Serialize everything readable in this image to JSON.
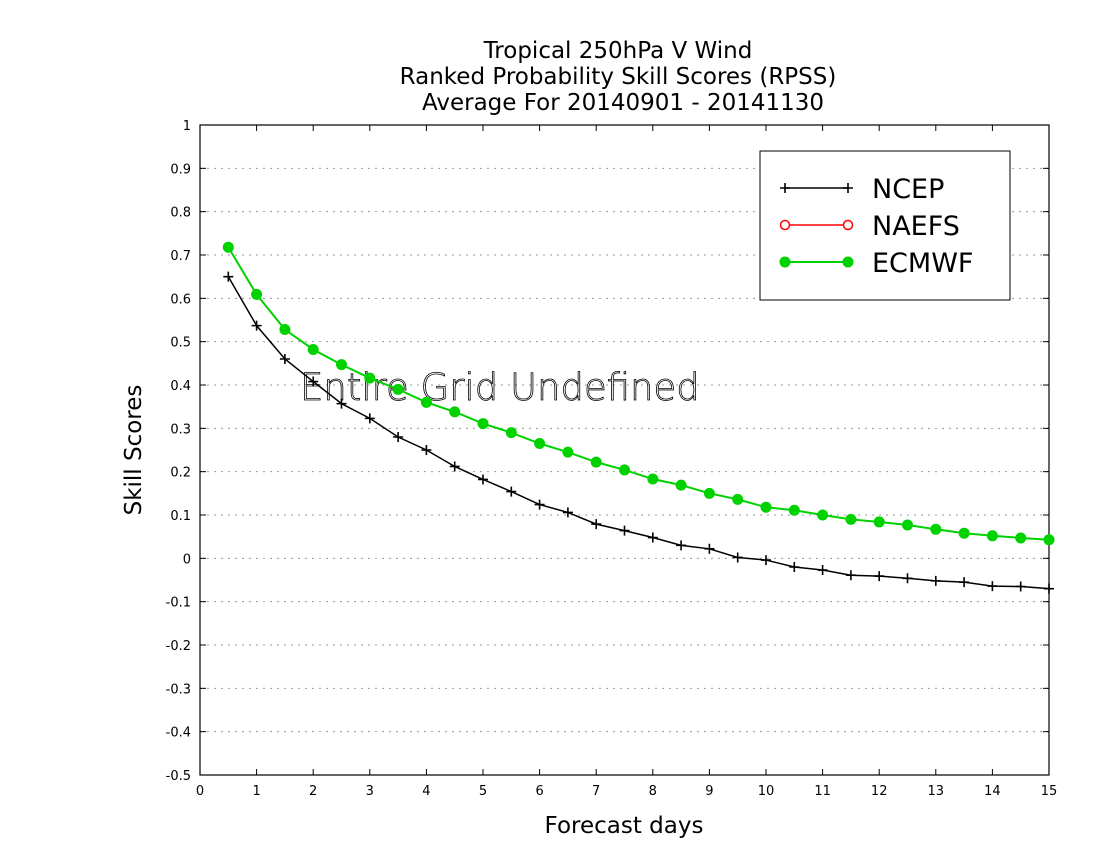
{
  "chart_data": {
    "type": "line",
    "title": "Tropical 250hPa V Wind",
    "subtitle": "Ranked Probability Skill Scores (RPSS)",
    "period": "Average For 20140901 - 20141130",
    "xlabel": "Forecast days",
    "ylabel": "Skill Scores",
    "xlim": [
      0,
      15
    ],
    "ylim": [
      -0.5,
      1
    ],
    "x_ticks": [
      "0",
      "1",
      "2",
      "3",
      "4",
      "5",
      "6",
      "7",
      "8",
      "9",
      "10",
      "11",
      "12",
      "13",
      "14",
      "15"
    ],
    "y_ticks": [
      "-0.5",
      "-0.4",
      "-0.3",
      "-0.2",
      "-0.1",
      "0",
      "0.1",
      "0.2",
      "0.3",
      "0.4",
      "0.5",
      "0.6",
      "0.7",
      "0.8",
      "0.9",
      "1"
    ],
    "grid": true,
    "legend_position": "top-right",
    "annotation": "Entire Grid Undefined",
    "series": [
      {
        "name": "NCEP",
        "color": "#000000",
        "marker": "plus",
        "x": [
          0.5,
          1,
          1.5,
          2,
          2.5,
          3,
          3.5,
          4,
          4.5,
          5,
          5.5,
          6,
          6.5,
          7,
          7.5,
          8,
          8.5,
          9,
          9.5,
          10,
          10.5,
          11,
          11.5,
          12,
          12.5,
          13,
          13.5,
          14,
          14.5,
          15
        ],
        "values": [
          0.65,
          0.537,
          0.46,
          0.408,
          0.357,
          0.323,
          0.28,
          0.25,
          0.212,
          0.182,
          0.154,
          0.124,
          0.106,
          0.079,
          0.064,
          0.048,
          0.03,
          0.022,
          0.002,
          -0.004,
          -0.02,
          -0.027,
          -0.039,
          -0.041,
          -0.046,
          -0.052,
          -0.055,
          -0.064,
          -0.065,
          -0.07
        ]
      },
      {
        "name": "NAEFS",
        "color": "#ff0000",
        "marker": "open-circle",
        "x": [],
        "values": []
      },
      {
        "name": "ECMWF",
        "color": "#00d200",
        "marker": "filled-circle",
        "x": [
          0.5,
          1,
          1.5,
          2,
          2.5,
          3,
          3.5,
          4,
          4.5,
          5,
          5.5,
          6,
          6.5,
          7,
          7.5,
          8,
          8.5,
          9,
          9.5,
          10,
          10.5,
          11,
          11.5,
          12,
          12.5,
          13,
          13.5,
          14,
          14.5,
          15
        ],
        "values": [
          0.718,
          0.609,
          0.528,
          0.482,
          0.447,
          0.416,
          0.39,
          0.36,
          0.338,
          0.311,
          0.29,
          0.265,
          0.245,
          0.222,
          0.204,
          0.183,
          0.169,
          0.15,
          0.136,
          0.118,
          0.111,
          0.1,
          0.09,
          0.084,
          0.077,
          0.067,
          0.058,
          0.052,
          0.047,
          0.043
        ]
      }
    ]
  }
}
